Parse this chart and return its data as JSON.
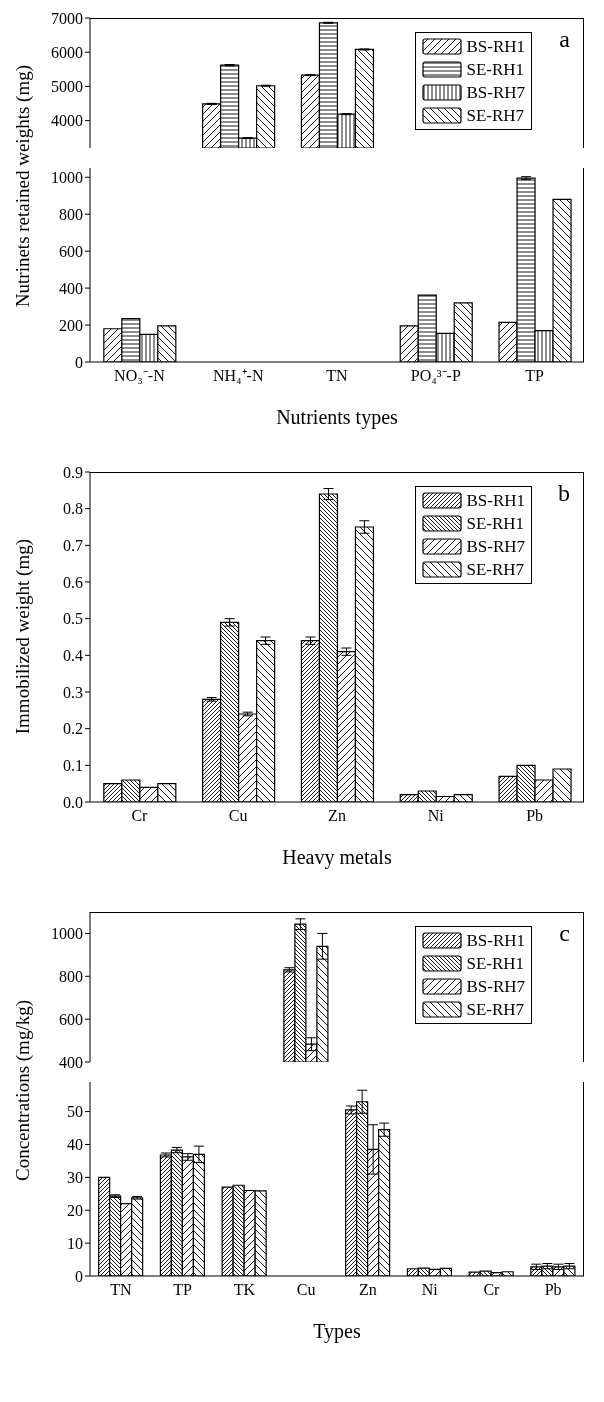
{
  "chart_data": [
    {
      "type": "bar",
      "categories": [
        null,
        null,
        null,
        null,
        null
      ],
      "ylim": [
        3200,
        7000
      ],
      "yticks": [
        4000,
        5000,
        6000,
        7000
      ],
      "tick_labels": "y",
      "legend": "top right",
      "annotations": [
        "a"
      ],
      "series": [
        {
          "name": "BS-RH1",
          "color": "#000000",
          "values": [
            null,
            4490,
            5330,
            null,
            null
          ],
          "errors": [
            null,
            15,
            15,
            null,
            null
          ]
        },
        {
          "name": "SE-RH1",
          "color": "#000000",
          "values": [
            null,
            5620,
            6860,
            null,
            null
          ],
          "errors": [
            null,
            20,
            15,
            null,
            null
          ]
        },
        {
          "name": "BS-RH7",
          "color": "#000000",
          "values": [
            null,
            3490,
            4190,
            null,
            null
          ],
          "errors": [
            null,
            15,
            15,
            null,
            null
          ]
        },
        {
          "name": "SE-RH7",
          "color": "#000000",
          "values": [
            null,
            5020,
            6080,
            null,
            null
          ],
          "errors": [
            null,
            15,
            15,
            null,
            null
          ]
        }
      ]
    },
    {
      "type": "bar",
      "categories": [
        "NO₃⁻-N",
        "NH₄⁺-N",
        "TN",
        "PO₄³⁻-P",
        "TP"
      ],
      "ylim": [
        0,
        1050
      ],
      "yticks": [
        0,
        200,
        400,
        600,
        800,
        1000
      ],
      "xlabel": "Nutrients types",
      "ylabel": "Nutrinets retained weights (mg)",
      "series": [
        {
          "color": "#000000",
          "values": [
            180,
            null,
            null,
            195,
            215
          ]
        },
        {
          "color": "#000000",
          "values": [
            235,
            null,
            null,
            362,
            995
          ],
          "errors": [
            null,
            null,
            null,
            null,
            8
          ]
        },
        {
          "color": "#000000",
          "values": [
            150,
            null,
            null,
            155,
            170
          ]
        },
        {
          "color": "#000000",
          "values": [
            195,
            null,
            null,
            320,
            880
          ]
        }
      ]
    },
    {
      "type": "bar",
      "categories": [
        "Cr",
        "Cu",
        "Zn",
        "Ni",
        "Pb"
      ],
      "ylim": [
        0,
        0.9
      ],
      "yticks": [
        {
          "value": 0,
          "label": "0.0"
        },
        0.1,
        0.2,
        0.3,
        0.4,
        0.5,
        0.6,
        0.7,
        0.8,
        0.9
      ],
      "xlabel": "Heavy metals",
      "ylabel": "Immobilized weight (mg)",
      "legend": "top right",
      "annotations": [
        "b"
      ],
      "series": [
        {
          "name": "BS-RH1",
          "color": "#000000",
          "values": [
            0.05,
            0.28,
            0.44,
            0.02,
            0.07
          ],
          "errors": [
            null,
            0.005,
            0.01,
            null,
            null
          ]
        },
        {
          "name": "SE-RH1",
          "color": "#000000",
          "values": [
            0.06,
            0.49,
            0.84,
            0.03,
            0.1
          ],
          "errors": [
            null,
            0.01,
            0.015,
            null,
            null
          ]
        },
        {
          "name": "BS-RH7",
          "color": "#000000",
          "values": [
            0.04,
            0.24,
            0.41,
            0.015,
            0.06
          ],
          "errors": [
            null,
            0.005,
            0.01,
            null,
            null
          ]
        },
        {
          "name": "SE-RH7",
          "color": "#000000",
          "values": [
            0.05,
            0.44,
            0.75,
            0.02,
            0.09
          ],
          "errors": [
            null,
            0.01,
            0.017,
            null,
            null
          ]
        }
      ]
    },
    {
      "type": "bar",
      "categories": [
        null,
        null,
        null,
        null,
        null,
        null,
        null,
        null
      ],
      "ylim": [
        400,
        1100
      ],
      "yticks": [
        400,
        600,
        800,
        1000
      ],
      "tick_labels": "y",
      "legend": "top right",
      "annotations": [
        "c"
      ],
      "series": [
        {
          "name": "BS-RH1",
          "color": "#000000",
          "values": [
            null,
            null,
            null,
            830,
            null,
            null,
            null,
            null
          ],
          "errors": [
            null,
            null,
            null,
            10,
            null,
            null,
            null,
            null
          ]
        },
        {
          "name": "SE-RH1",
          "color": "#000000",
          "values": [
            null,
            null,
            null,
            1043,
            null,
            null,
            null,
            null
          ],
          "errors": [
            null,
            null,
            null,
            25,
            null,
            null,
            null,
            null
          ]
        },
        {
          "name": "BS-RH7",
          "color": "#000000",
          "values": [
            null,
            null,
            null,
            483,
            null,
            null,
            null,
            null
          ],
          "errors": [
            null,
            null,
            null,
            30,
            null,
            null,
            null,
            null
          ]
        },
        {
          "name": "SE-RH7",
          "color": "#000000",
          "values": [
            null,
            null,
            null,
            940,
            null,
            null,
            null,
            null
          ],
          "errors": [
            null,
            null,
            null,
            60,
            null,
            null,
            null,
            null
          ]
        }
      ]
    },
    {
      "type": "bar",
      "categories": [
        "TN",
        "TP",
        "TK",
        "Cu",
        "Zn",
        "Ni",
        "Cr",
        "Pb"
      ],
      "ylim": [
        0,
        59
      ],
      "yticks": [
        0,
        10,
        20,
        30,
        40,
        50
      ],
      "xlabel": "Types",
      "ylabel": "Concentrations (mg/kg)",
      "series": [
        {
          "color": "#000000",
          "values": [
            30,
            36.8,
            27,
            null,
            50.5,
            2.2,
            1.2,
            2.8
          ],
          "errors": [
            null,
            0.6,
            null,
            null,
            1.2,
            null,
            null,
            0.8
          ]
        },
        {
          "color": "#000000",
          "values": [
            24.3,
            38.3,
            27.6,
            null,
            53,
            2.4,
            1.5,
            3
          ],
          "errors": [
            0.4,
            0.8,
            null,
            null,
            3.5,
            null,
            null,
            0.8
          ]
        },
        {
          "color": "#000000",
          "values": [
            22,
            36.2,
            26,
            null,
            38.5,
            2,
            1,
            2.8
          ],
          "errors": [
            null,
            1,
            null,
            null,
            7.5,
            null,
            null,
            0.8
          ]
        },
        {
          "color": "#000000",
          "values": [
            23.8,
            37,
            25.9,
            null,
            44.5,
            2.3,
            1.3,
            3
          ],
          "errors": [
            0.4,
            2.5,
            null,
            null,
            2,
            null,
            null,
            0.8
          ]
        }
      ]
    }
  ]
}
